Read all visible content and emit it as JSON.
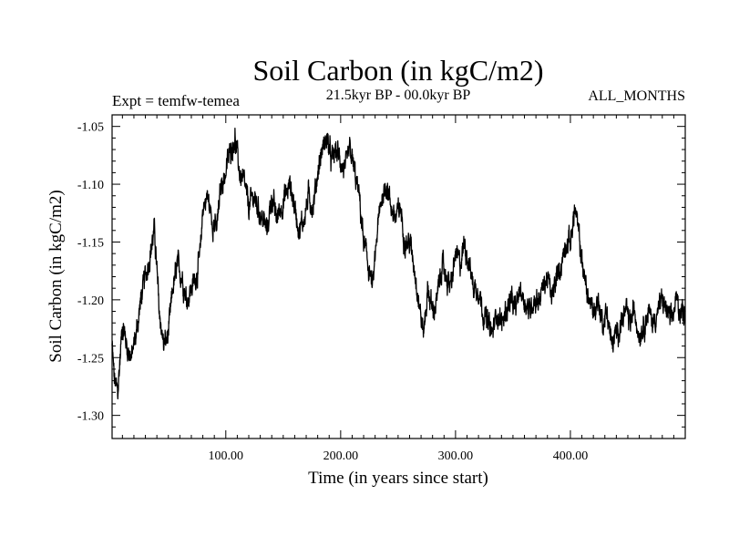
{
  "chart_data": {
    "type": "line",
    "title": "Soil Carbon (in kgC/m2)",
    "subtitle": "21.5kyr BP - 00.0kyr BP",
    "left_label": "Expt = temfw-temea",
    "right_label": "ALL_MONTHS",
    "xlabel": "Time (in years since start)",
    "ylabel": "Soil Carbon (in kgC/m2)",
    "xlim": [
      1,
      500
    ],
    "ylim": [
      -1.32,
      -1.04
    ],
    "x_ticks": [
      100,
      200,
      300,
      400
    ],
    "x_tick_labels": [
      "100.00",
      "200.00",
      "300.00",
      "400.00"
    ],
    "y_ticks": [
      -1.05,
      -1.1,
      -1.15,
      -1.2,
      -1.25,
      -1.3
    ],
    "y_tick_labels": [
      "-1.05",
      "-1.10",
      "-1.15",
      "-1.20",
      "-1.25",
      "-1.30"
    ],
    "grid": false,
    "series": [
      {
        "name": "Soil Carbon",
        "color": "#000000",
        "x": [
          1,
          3,
          6,
          10,
          14,
          18,
          22,
          26,
          30,
          34,
          38,
          42,
          46,
          50,
          54,
          58,
          62,
          66,
          70,
          74,
          78,
          80,
          84,
          88,
          92,
          96,
          100,
          104,
          108,
          112,
          116,
          120,
          124,
          128,
          132,
          136,
          140,
          144,
          148,
          152,
          156,
          160,
          164,
          168,
          172,
          176,
          180,
          184,
          188,
          192,
          196,
          200,
          204,
          208,
          212,
          216,
          220,
          224,
          228,
          232,
          236,
          240,
          244,
          248,
          252,
          256,
          260,
          264,
          268,
          272,
          276,
          280,
          284,
          288,
          292,
          296,
          300,
          304,
          308,
          312,
          316,
          320,
          324,
          328,
          332,
          336,
          340,
          344,
          348,
          352,
          356,
          360,
          364,
          368,
          372,
          376,
          380,
          384,
          388,
          392,
          396,
          400,
          404,
          408,
          412,
          416,
          420,
          424,
          428,
          432,
          436,
          440,
          444,
          448,
          452,
          456,
          460,
          464,
          468,
          472,
          476,
          480,
          484,
          488,
          492,
          496,
          500
        ],
        "values": [
          -1.24,
          -1.27,
          -1.28,
          -1.22,
          -1.24,
          -1.25,
          -1.23,
          -1.2,
          -1.18,
          -1.16,
          -1.14,
          -1.21,
          -1.24,
          -1.23,
          -1.19,
          -1.17,
          -1.18,
          -1.2,
          -1.19,
          -1.18,
          -1.16,
          -1.12,
          -1.11,
          -1.13,
          -1.14,
          -1.1,
          -1.09,
          -1.07,
          -1.06,
          -1.09,
          -1.1,
          -1.12,
          -1.11,
          -1.12,
          -1.13,
          -1.14,
          -1.11,
          -1.13,
          -1.12,
          -1.11,
          -1.1,
          -1.12,
          -1.14,
          -1.13,
          -1.11,
          -1.12,
          -1.09,
          -1.07,
          -1.06,
          -1.08,
          -1.07,
          -1.08,
          -1.09,
          -1.07,
          -1.09,
          -1.11,
          -1.15,
          -1.17,
          -1.19,
          -1.14,
          -1.11,
          -1.1,
          -1.12,
          -1.13,
          -1.12,
          -1.15,
          -1.15,
          -1.17,
          -1.2,
          -1.23,
          -1.19,
          -1.21,
          -1.2,
          -1.17,
          -1.18,
          -1.19,
          -1.16,
          -1.17,
          -1.15,
          -1.17,
          -1.19,
          -1.19,
          -1.21,
          -1.22,
          -1.23,
          -1.21,
          -1.22,
          -1.21,
          -1.2,
          -1.21,
          -1.19,
          -1.2,
          -1.21,
          -1.2,
          -1.2,
          -1.19,
          -1.18,
          -1.2,
          -1.18,
          -1.17,
          -1.15,
          -1.15,
          -1.12,
          -1.15,
          -1.18,
          -1.2,
          -1.21,
          -1.2,
          -1.22,
          -1.21,
          -1.24,
          -1.23,
          -1.22,
          -1.21,
          -1.22,
          -1.21,
          -1.23,
          -1.22,
          -1.21,
          -1.22,
          -1.21,
          -1.2,
          -1.21,
          -1.22,
          -1.2,
          -1.21,
          -1.21
        ]
      }
    ]
  }
}
